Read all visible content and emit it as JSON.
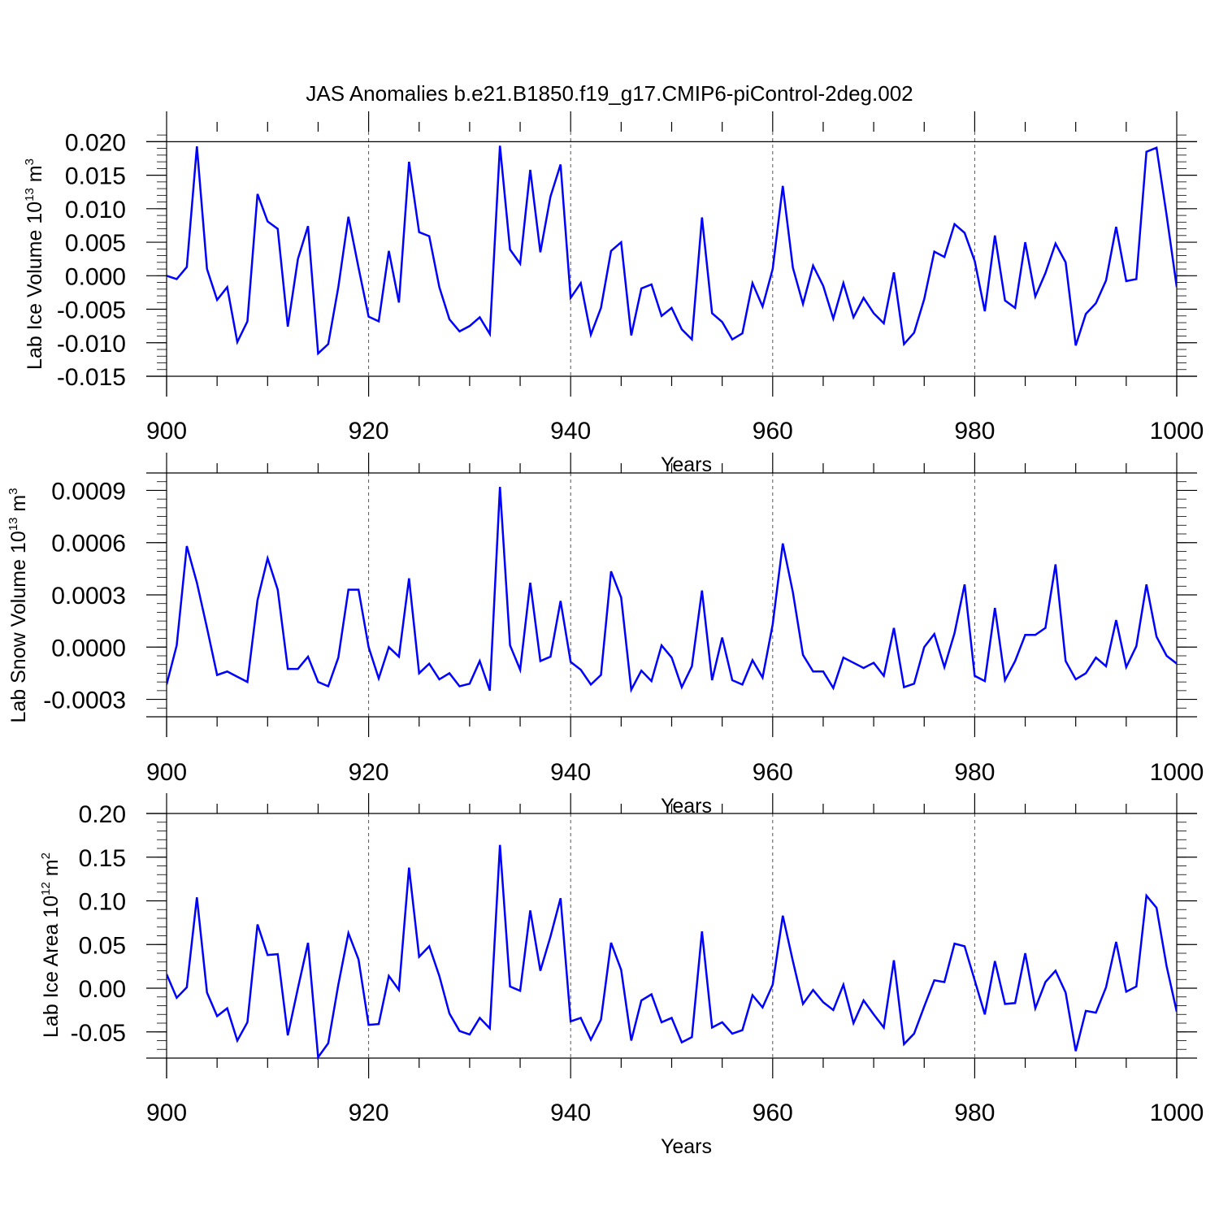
{
  "title": "JAS Anomalies b.e21.B1850.f19_g17.CMIP6-piControl-2deg.002",
  "colors": {
    "series": "#0000ff",
    "axes": "#000000",
    "grid": "#555555"
  },
  "chart_data": [
    {
      "type": "line",
      "xlabel": "Years",
      "ylabel": {
        "main": "Lab Ice Volume 10",
        "exp": "13",
        "unit": " m",
        "unit_exp": "3"
      },
      "xlim": [
        900,
        1000
      ],
      "ylim": [
        -0.015,
        0.0215
      ],
      "xticks": [
        "900",
        "920",
        "940",
        "960",
        "980",
        "1000"
      ],
      "yticks": [
        "0.020",
        "0.015",
        "0.010",
        "0.005",
        "0.000",
        "-0.005",
        "-0.010",
        "-0.015"
      ],
      "ytick_values": [
        0.02,
        0.015,
        0.01,
        0.005,
        0.0,
        -0.005,
        -0.01,
        -0.015
      ],
      "grid_x": [
        920,
        940,
        960,
        980
      ],
      "refline_y": 0.02,
      "x_start": 900,
      "values": [
        0.0,
        -0.0005,
        0.0013,
        0.0193,
        0.001,
        -0.0036,
        -0.0017,
        -0.0099,
        -0.0068,
        0.0122,
        0.0081,
        0.007,
        -0.0076,
        0.0025,
        0.0074,
        -0.0116,
        -0.0102,
        -0.0017,
        0.0088,
        0.0012,
        -0.0061,
        -0.0068,
        0.0037,
        -0.004,
        0.017,
        0.0065,
        0.0059,
        -0.0017,
        -0.0065,
        -0.0083,
        -0.0075,
        -0.0062,
        -0.0087,
        0.0194,
        0.0039,
        0.0018,
        0.0158,
        0.0035,
        0.0118,
        0.0166,
        -0.0033,
        -0.0011,
        -0.0088,
        -0.0048,
        0.0037,
        0.005,
        -0.0089,
        -0.0019,
        -0.0013,
        -0.006,
        -0.0048,
        -0.008,
        -0.0095,
        0.0087,
        -0.0056,
        -0.0069,
        -0.0095,
        -0.0086,
        -0.0011,
        -0.0046,
        0.001,
        0.0134,
        0.0012,
        -0.0042,
        0.0015,
        -0.0015,
        -0.0064,
        -0.0011,
        -0.0062,
        -0.0033,
        -0.0056,
        -0.0071,
        0.0005,
        -0.0102,
        -0.0085,
        -0.0035,
        0.0036,
        0.0028,
        0.0077,
        0.0064,
        0.0022,
        -0.0053,
        0.006,
        -0.0037,
        -0.0048,
        0.005,
        -0.0031,
        0.0004,
        0.0048,
        0.002,
        -0.0104,
        -0.0057,
        -0.0041,
        -0.0007,
        0.0073,
        -0.0008,
        -0.0005,
        0.0185,
        0.0191,
        0.009,
        -0.0017
      ]
    },
    {
      "type": "line",
      "xlabel": "Years",
      "ylabel": {
        "main": "Lab Snow Volume 10",
        "exp": "13",
        "unit": " m",
        "unit_exp": "3"
      },
      "xlim": [
        900,
        1000
      ],
      "ylim": [
        -0.0004,
        0.001
      ],
      "xticks": [
        "900",
        "920",
        "940",
        "960",
        "980",
        "1000"
      ],
      "yticks": [
        "0.0009",
        "0.0006",
        "0.0003",
        "0.0000",
        "-0.0003"
      ],
      "ytick_values": [
        0.0009,
        0.0006,
        0.0003,
        0.0,
        -0.0003
      ],
      "grid_x": [
        920,
        940,
        960,
        980
      ],
      "refline_y": 0.001,
      "x_start": 900,
      "values": [
        -0.000215,
        1e-05,
        0.00058,
        0.00037,
        0.00011,
        -0.00016,
        -0.00014,
        -0.00017,
        -0.0002,
        0.00027,
        0.00051,
        0.00033,
        -0.000125,
        -0.000125,
        -5.5e-05,
        -0.0002,
        -0.000225,
        -6e-05,
        0.00033,
        0.00033,
        0.0,
        -0.00018,
        0.0,
        -5.5e-05,
        0.000395,
        -0.00015,
        -9.5e-05,
        -0.000185,
        -0.00015,
        -0.000225,
        -0.00021,
        -8e-05,
        -0.00025,
        0.00092,
        1e-05,
        -0.00013,
        0.00037,
        -8e-05,
        -5.5e-05,
        0.000265,
        -8.5e-05,
        -0.00013,
        -0.000215,
        -0.00016,
        0.000435,
        0.000285,
        -0.000245,
        -0.000135,
        -0.000195,
        1e-05,
        -6e-05,
        -0.00023,
        -0.00011,
        0.000325,
        -0.00019,
        5.5e-05,
        -0.00019,
        -0.000215,
        -7.5e-05,
        -0.000175,
        0.00013,
        0.000595,
        0.000315,
        -4.5e-05,
        -0.00014,
        -0.00014,
        -0.000235,
        -6e-05,
        -9e-05,
        -0.00012,
        -9e-05,
        -0.000165,
        0.00011,
        -0.00023,
        -0.00021,
        0.0,
        7.5e-05,
        -0.000115,
        8e-05,
        0.00036,
        -0.000165,
        -0.000195,
        0.000225,
        -0.00019,
        -8e-05,
        7e-05,
        7e-05,
        0.00011,
        0.000475,
        -8e-05,
        -0.000185,
        -0.00015,
        -6e-05,
        -0.00011,
        0.000155,
        -0.000115,
        5e-06,
        0.00036,
        6e-05,
        -5e-05,
        -9.5e-05
      ]
    },
    {
      "type": "line",
      "xlabel": "Years",
      "ylabel": {
        "main": "Lab Ice Area 10",
        "exp": "12",
        "unit": " m",
        "unit_exp": "2"
      },
      "xlim": [
        900,
        1000
      ],
      "ylim": [
        -0.08,
        0.2
      ],
      "xticks": [
        "900",
        "920",
        "940",
        "960",
        "980",
        "1000"
      ],
      "yticks": [
        "0.20",
        "0.15",
        "0.10",
        "0.05",
        "0.00",
        "-0.05"
      ],
      "ytick_values": [
        0.2,
        0.15,
        0.1,
        0.05,
        0.0,
        -0.05
      ],
      "grid_x": [
        920,
        940,
        960,
        980
      ],
      "refline_y": 0.2,
      "x_start": 900,
      "values": [
        0.016,
        -0.011,
        0.001,
        0.104,
        -0.005,
        -0.032,
        -0.023,
        -0.06,
        -0.039,
        0.073,
        0.038,
        0.039,
        -0.054,
        0.0,
        0.052,
        -0.079,
        -0.063,
        0.004,
        0.063,
        0.033,
        -0.042,
        -0.041,
        0.014,
        -0.002,
        0.138,
        0.036,
        0.048,
        0.014,
        -0.029,
        -0.049,
        -0.053,
        -0.034,
        -0.046,
        0.164,
        0.002,
        -0.003,
        0.089,
        0.02,
        0.059,
        0.103,
        -0.038,
        -0.034,
        -0.059,
        -0.036,
        0.052,
        0.021,
        -0.06,
        -0.014,
        -0.007,
        -0.039,
        -0.034,
        -0.062,
        -0.056,
        0.065,
        -0.045,
        -0.039,
        -0.052,
        -0.048,
        -0.008,
        -0.022,
        0.004,
        0.083,
        0.031,
        -0.018,
        -0.002,
        -0.016,
        -0.025,
        0.004,
        -0.04,
        -0.014,
        -0.03,
        -0.045,
        0.032,
        -0.064,
        -0.052,
        -0.021,
        0.009,
        0.007,
        0.051,
        0.048,
        0.009,
        -0.03,
        0.031,
        -0.018,
        -0.017,
        0.04,
        -0.023,
        0.007,
        0.02,
        -0.005,
        -0.072,
        -0.026,
        -0.028,
        0.001,
        0.053,
        -0.004,
        0.002,
        0.106,
        0.092,
        0.025,
        -0.027
      ]
    }
  ]
}
